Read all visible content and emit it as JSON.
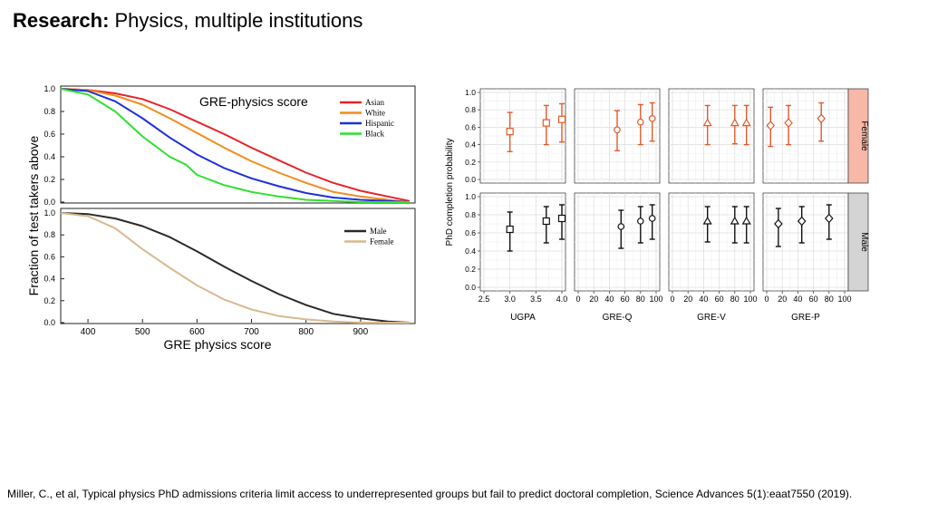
{
  "slide": {
    "title_bold": "Research:",
    "title_rest": " Physics, multiple institutions",
    "citation": "Miller, C., et al, Typical physics PhD admissions criteria limit access to underrepresented groups but fail to predict doctoral completion, Science Advances 5(1):eaat7550 (2019)."
  },
  "chart_data": [
    {
      "type": "line",
      "annotation": "GRE-physics score",
      "ylabel": "Fraction of test takers above",
      "xlabel": "",
      "xlim": [
        350,
        1000
      ],
      "ylim": [
        0,
        1
      ],
      "yticks": [
        "0.0",
        "0.2",
        "0.4",
        "0.6",
        "0.8",
        "1.0"
      ],
      "legend_position": "top-right",
      "series": [
        {
          "name": "Asian",
          "color": "#e8232a",
          "x": [
            350,
            400,
            450,
            500,
            550,
            600,
            650,
            700,
            750,
            800,
            850,
            900,
            950,
            990
          ],
          "y": [
            1.0,
            0.99,
            0.96,
            0.91,
            0.82,
            0.71,
            0.6,
            0.48,
            0.37,
            0.26,
            0.17,
            0.1,
            0.05,
            0.01
          ]
        },
        {
          "name": "White",
          "color": "#f28c1e",
          "x": [
            350,
            400,
            450,
            500,
            550,
            600,
            650,
            700,
            750,
            800,
            850,
            900,
            950,
            990
          ],
          "y": [
            1.0,
            0.99,
            0.94,
            0.86,
            0.74,
            0.61,
            0.48,
            0.36,
            0.26,
            0.17,
            0.09,
            0.05,
            0.02,
            0.0
          ]
        },
        {
          "name": "Hispanic",
          "color": "#1f2fd8",
          "x": [
            350,
            400,
            450,
            500,
            550,
            600,
            650,
            700,
            750,
            800,
            850,
            900,
            950,
            990
          ],
          "y": [
            1.0,
            0.98,
            0.89,
            0.74,
            0.57,
            0.42,
            0.3,
            0.21,
            0.14,
            0.08,
            0.04,
            0.02,
            0.01,
            0.0
          ]
        },
        {
          "name": "Black",
          "color": "#2ee02e",
          "x": [
            350,
            400,
            450,
            500,
            550,
            580,
            600,
            650,
            700,
            750,
            800,
            850,
            900,
            990
          ],
          "y": [
            1.0,
            0.95,
            0.8,
            0.58,
            0.4,
            0.33,
            0.24,
            0.15,
            0.09,
            0.05,
            0.02,
            0.01,
            0.0,
            0.0
          ]
        }
      ]
    },
    {
      "type": "line",
      "xlabel": "GRE physics score",
      "ylabel": "Fraction of test takers above",
      "xlim": [
        350,
        1000
      ],
      "ylim": [
        0,
        1
      ],
      "xticks": [
        "400",
        "500",
        "600",
        "700",
        "800",
        "900"
      ],
      "yticks": [
        "0.0",
        "0.2",
        "0.4",
        "0.6",
        "0.8",
        "1.0"
      ],
      "legend_position": "top-right",
      "series": [
        {
          "name": "Male",
          "color": "#2d2a25",
          "x": [
            350,
            400,
            450,
            500,
            550,
            600,
            650,
            700,
            750,
            800,
            850,
            900,
            950,
            990
          ],
          "y": [
            1.0,
            0.99,
            0.95,
            0.88,
            0.78,
            0.65,
            0.51,
            0.38,
            0.26,
            0.16,
            0.08,
            0.04,
            0.01,
            0.0
          ]
        },
        {
          "name": "Female",
          "color": "#d9b98f",
          "x": [
            350,
            400,
            450,
            500,
            550,
            600,
            650,
            700,
            750,
            800,
            850,
            900,
            950,
            990
          ],
          "y": [
            1.0,
            0.97,
            0.86,
            0.67,
            0.5,
            0.34,
            0.21,
            0.12,
            0.06,
            0.03,
            0.01,
            0.0,
            0.0,
            0.0
          ]
        }
      ]
    },
    {
      "type": "scatter",
      "ylabel": "PhD completion probability",
      "ylim": [
        0,
        1
      ],
      "yticks": [
        "0.0",
        "0.2",
        "0.4",
        "0.6",
        "0.8",
        "1.0"
      ],
      "rows": [
        {
          "label": "Female",
          "color": "#e05a2b"
        },
        {
          "label": "Male",
          "color": "#111111"
        }
      ],
      "panels": [
        {
          "xlabel": "UGPA",
          "xlim": [
            2.5,
            4.0
          ],
          "xticks": [
            "2.5",
            "3.0",
            "3.5",
            "4.0"
          ],
          "marker": "square",
          "female": [
            {
              "x": 3.0,
              "y": 0.55,
              "lo": 0.32,
              "hi": 0.77
            },
            {
              "x": 3.7,
              "y": 0.65,
              "lo": 0.4,
              "hi": 0.85
            },
            {
              "x": 4.0,
              "y": 0.69,
              "lo": 0.43,
              "hi": 0.87
            }
          ],
          "male": [
            {
              "x": 3.0,
              "y": 0.64,
              "lo": 0.4,
              "hi": 0.83
            },
            {
              "x": 3.7,
              "y": 0.73,
              "lo": 0.49,
              "hi": 0.89
            },
            {
              "x": 4.0,
              "y": 0.76,
              "lo": 0.53,
              "hi": 0.91
            }
          ]
        },
        {
          "xlabel": "GRE-Q",
          "xlim": [
            0,
            100
          ],
          "xticks": [
            "0",
            "20",
            "40",
            "60",
            "80",
            "100"
          ],
          "marker": "circle",
          "female": [
            {
              "x": 50,
              "y": 0.57,
              "lo": 0.33,
              "hi": 0.79
            },
            {
              "x": 80,
              "y": 0.66,
              "lo": 0.4,
              "hi": 0.86
            },
            {
              "x": 95,
              "y": 0.7,
              "lo": 0.44,
              "hi": 0.88
            }
          ],
          "male": [
            {
              "x": 55,
              "y": 0.67,
              "lo": 0.43,
              "hi": 0.85
            },
            {
              "x": 80,
              "y": 0.73,
              "lo": 0.49,
              "hi": 0.89
            },
            {
              "x": 95,
              "y": 0.76,
              "lo": 0.53,
              "hi": 0.91
            }
          ]
        },
        {
          "xlabel": "GRE-V",
          "xlim": [
            0,
            100
          ],
          "xticks": [
            "0",
            "20",
            "40",
            "60",
            "80",
            "100"
          ],
          "marker": "triangle",
          "female": [
            {
              "x": 45,
              "y": 0.65,
              "lo": 0.4,
              "hi": 0.85
            },
            {
              "x": 80,
              "y": 0.65,
              "lo": 0.41,
              "hi": 0.85
            },
            {
              "x": 95,
              "y": 0.65,
              "lo": 0.4,
              "hi": 0.85
            }
          ],
          "male": [
            {
              "x": 45,
              "y": 0.73,
              "lo": 0.5,
              "hi": 0.89
            },
            {
              "x": 80,
              "y": 0.73,
              "lo": 0.49,
              "hi": 0.89
            },
            {
              "x": 95,
              "y": 0.73,
              "lo": 0.49,
              "hi": 0.89
            }
          ]
        },
        {
          "xlabel": "GRE-P",
          "xlim": [
            0,
            100
          ],
          "xticks": [
            "0",
            "20",
            "40",
            "60",
            "80",
            "100"
          ],
          "marker": "diamond",
          "female": [
            {
              "x": 5,
              "y": 0.62,
              "lo": 0.38,
              "hi": 0.83
            },
            {
              "x": 28,
              "y": 0.65,
              "lo": 0.4,
              "hi": 0.85
            },
            {
              "x": 70,
              "y": 0.7,
              "lo": 0.44,
              "hi": 0.88
            }
          ],
          "male": [
            {
              "x": 15,
              "y": 0.7,
              "lo": 0.45,
              "hi": 0.87
            },
            {
              "x": 45,
              "y": 0.73,
              "lo": 0.49,
              "hi": 0.89
            },
            {
              "x": 80,
              "y": 0.76,
              "lo": 0.53,
              "hi": 0.91
            }
          ]
        }
      ]
    }
  ]
}
